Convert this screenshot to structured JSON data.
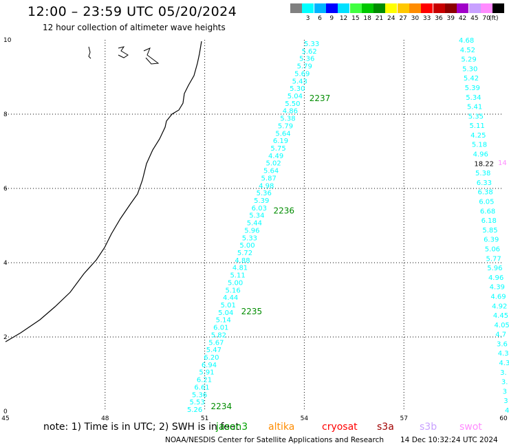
{
  "title": "12:00 – 23:59 UTC 05/20/2024",
  "subtitle": "12 hour collection of altimeter wave heights",
  "legend": {
    "swatches": [
      {
        "label": "",
        "color": "#808080"
      },
      {
        "label": "3",
        "color": "#00ffff"
      },
      {
        "label": "6",
        "color": "#00b4ff"
      },
      {
        "label": "9",
        "color": "#0000ff"
      },
      {
        "label": "12",
        "color": "#00e0ff"
      },
      {
        "label": "15",
        "color": "#40ff40"
      },
      {
        "label": "18",
        "color": "#00c800"
      },
      {
        "label": "21",
        "color": "#008c00"
      },
      {
        "label": "24",
        "color": "#ffff00"
      },
      {
        "label": "27",
        "color": "#ffc800"
      },
      {
        "label": "30",
        "color": "#ff8c00"
      },
      {
        "label": "33",
        "color": "#ff0000"
      },
      {
        "label": "36",
        "color": "#c80000"
      },
      {
        "label": "39",
        "color": "#8c0000"
      },
      {
        "label": "42",
        "color": "#a000c8"
      },
      {
        "label": "45",
        "color": "#c8a0ff"
      },
      {
        "label": "70",
        "color": "#ff8cff"
      },
      {
        "label": "",
        "color": "#000000"
      }
    ],
    "unit": "(ft)"
  },
  "axes": {
    "x_ticks": [
      "45",
      "48",
      "51",
      "54",
      "57",
      "60"
    ],
    "y_ticks": [
      "0",
      "2",
      "4",
      "6",
      "8",
      "10"
    ]
  },
  "track_a": {
    "color": "#00ffff",
    "values": [
      "5.26",
      "5.53",
      "5.36",
      "6.61",
      "6.21",
      "5.91",
      "6.94",
      "6.20",
      "5.47",
      "5.67",
      "5.82",
      "6.01",
      "5.14",
      "5.04",
      "5.01",
      "4.44",
      "5.16",
      "5.00",
      "5.11",
      "4.81",
      "4.88",
      "5.72",
      "5.00",
      "5.33",
      "5.96",
      "5.44",
      "5.34",
      "6.03",
      "5.39",
      "5.36",
      "4.98",
      "5.87",
      "5.64",
      "5.02",
      "4.49",
      "5.75",
      "6.19",
      "5.64",
      "5.79",
      "5.38",
      "4.86",
      "5.50",
      "5.04",
      "5.30",
      "5.43",
      "5.69",
      "5.79",
      "5.36",
      "5.62",
      "5.33"
    ],
    "pass_labels": [
      "2234",
      "2235",
      "2236",
      "2237"
    ]
  },
  "track_b": {
    "color": "#00ffff",
    "values": [
      "4.68",
      "4.52",
      "5.29",
      "5.30",
      "5.42",
      "5.39",
      "5.34",
      "5.41",
      "5.35",
      "5.11",
      "4.25",
      "5.18",
      "4.96",
      "18.22",
      "5.38",
      "6.33",
      "6.38",
      "6.05",
      "6.68",
      "6.18",
      "5.85",
      "6.39",
      "5.06",
      "5.77",
      "5.96",
      "4.96",
      "4.39",
      "4.69",
      "4.92",
      "4.45",
      "4.05",
      "4.7",
      "3.6",
      "4.3",
      "4.3",
      "3.",
      "3.",
      "3",
      "3",
      "4"
    ],
    "highlight_color": "#000000",
    "edge_label": "14",
    "edge_color": "#ff8cff"
  },
  "note": "note:  1) Time is in UTC; 2) SWH is in feet",
  "satellites": [
    {
      "name": "jason3",
      "color": "#00a000"
    },
    {
      "name": "altika",
      "color": "#ff8c00"
    },
    {
      "name": "cryosat",
      "color": "#ff0000"
    },
    {
      "name": "s3a",
      "color": "#a00000"
    },
    {
      "name": "s3b",
      "color": "#c8a0ff"
    },
    {
      "name": "swot",
      "color": "#ff8cff"
    }
  ],
  "credit": "NOAA/NESDIS Center for Satellite Applications and Research",
  "credit_time": "14 Dec 10:32:24 UTC 2024"
}
